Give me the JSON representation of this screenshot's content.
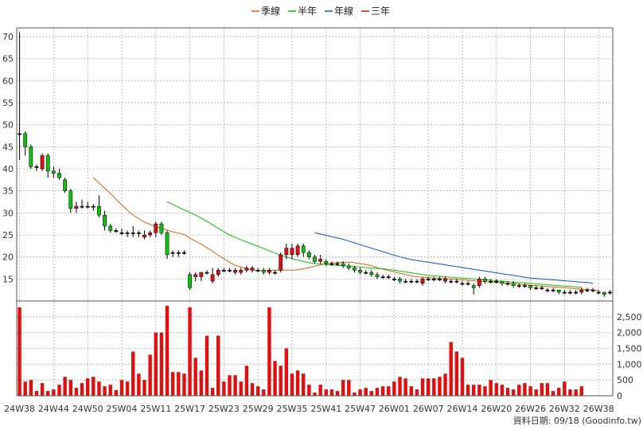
{
  "legend": [
    {
      "label": "季線",
      "color": "#e06010"
    },
    {
      "label": "半年",
      "color": "#10c010"
    },
    {
      "label": "年線",
      "color": "#1050d0"
    },
    {
      "label": "三年",
      "color": "#e01010"
    }
  ],
  "source_text": "資料日期: 09/18  (Goodinfo.tw)",
  "chart_data": {
    "type": "candlestick",
    "price_axis": {
      "ylim": [
        10,
        72
      ],
      "ticks": [
        15,
        20,
        25,
        30,
        35,
        40,
        45,
        50,
        55,
        60,
        65,
        70
      ],
      "side": "left"
    },
    "volume_axis": {
      "ylim": [
        0,
        3000
      ],
      "ticks": [
        0,
        500,
        1000,
        1500,
        2000,
        2500
      ],
      "tick_labels": [
        "0",
        "500",
        "1,000",
        "1,500",
        "2,000",
        "2,500"
      ],
      "side": "right"
    },
    "x_tick_labels": [
      "24W38",
      "24W44",
      "24W50",
      "25W04",
      "25W11",
      "25W17",
      "25W23",
      "25W29",
      "25W35",
      "25W41",
      "25W47",
      "26W01",
      "26W07",
      "26W14",
      "26W20",
      "26W26",
      "26W32",
      "26W38"
    ],
    "grid": true,
    "candle_colors": {
      "up": "#e01010",
      "down": "#10c010",
      "flat": "#000000"
    },
    "volume_color": "#e01010",
    "candles": [
      {
        "o": 48,
        "h": 71,
        "l": 42,
        "c": 48
      },
      {
        "o": 48,
        "h": 48.5,
        "l": 43,
        "c": 45
      },
      {
        "o": 45,
        "h": 45.5,
        "l": 40,
        "c": 40.5
      },
      {
        "o": 40.5,
        "h": 41,
        "l": 39.5,
        "c": 40.5
      },
      {
        "o": 40,
        "h": 43.5,
        "l": 39.5,
        "c": 43
      },
      {
        "o": 43,
        "h": 43.5,
        "l": 38,
        "c": 39.5
      },
      {
        "o": 39.5,
        "h": 40.5,
        "l": 38,
        "c": 39
      },
      {
        "o": 39,
        "h": 40,
        "l": 37.5,
        "c": 38
      },
      {
        "o": 37.5,
        "h": 38,
        "l": 34.5,
        "c": 35
      },
      {
        "o": 35,
        "h": 35.5,
        "l": 30,
        "c": 31
      },
      {
        "o": 31,
        "h": 32.5,
        "l": 30,
        "c": 31.5
      },
      {
        "o": 31.5,
        "h": 33,
        "l": 31,
        "c": 31.5
      },
      {
        "o": 31.5,
        "h": 32.5,
        "l": 31,
        "c": 31.5
      },
      {
        "o": 31.5,
        "h": 32,
        "l": 30.5,
        "c": 31.5
      },
      {
        "o": 31.5,
        "h": 34,
        "l": 29,
        "c": 29.5
      },
      {
        "o": 29.5,
        "h": 30.5,
        "l": 26,
        "c": 27
      },
      {
        "o": 27,
        "h": 27.5,
        "l": 25.5,
        "c": 26
      },
      {
        "o": 26,
        "h": 26.5,
        "l": 25.5,
        "c": 26
      },
      {
        "o": 25.5,
        "h": 26.5,
        "l": 25,
        "c": 25.5
      },
      {
        "o": 25.5,
        "h": 26,
        "l": 24.5,
        "c": 25.5
      },
      {
        "o": 25.5,
        "h": 27,
        "l": 24.5,
        "c": 25.5
      },
      {
        "o": 25.5,
        "h": 26,
        "l": 24.5,
        "c": 25.5
      },
      {
        "o": 24.5,
        "h": 26,
        "l": 24,
        "c": 25
      },
      {
        "o": 25,
        "h": 26,
        "l": 24.5,
        "c": 25.5
      },
      {
        "o": 25.5,
        "h": 28,
        "l": 24.5,
        "c": 27.5
      },
      {
        "o": 27.5,
        "h": 28,
        "l": 25,
        "c": 25.5
      },
      {
        "o": 25.5,
        "h": 26,
        "l": 19.5,
        "c": 20.5
      },
      {
        "o": 21,
        "h": 21.5,
        "l": 20,
        "c": 21
      },
      {
        "o": 21,
        "h": 21.5,
        "l": 20,
        "c": 21
      },
      {
        "o": 21,
        "h": 21.5,
        "l": 20.5,
        "c": 21
      },
      {
        "o": 16,
        "h": 16.5,
        "l": 12.5,
        "c": 13
      },
      {
        "o": 15.5,
        "h": 16.5,
        "l": 14.5,
        "c": 16
      },
      {
        "o": 15.5,
        "h": 16.5,
        "l": 14.5,
        "c": 16.5
      },
      {
        "o": 16.5,
        "h": 17,
        "l": 16,
        "c": 16.5
      },
      {
        "o": 14.5,
        "h": 17.5,
        "l": 14,
        "c": 16
      },
      {
        "o": 16,
        "h": 17.5,
        "l": 15.5,
        "c": 17
      },
      {
        "o": 17,
        "h": 17.5,
        "l": 16.5,
        "c": 17
      },
      {
        "o": 17,
        "h": 17.5,
        "l": 16.5,
        "c": 17
      },
      {
        "o": 16.5,
        "h": 17.5,
        "l": 16,
        "c": 17
      },
      {
        "o": 16.5,
        "h": 17.5,
        "l": 16,
        "c": 17
      },
      {
        "o": 17,
        "h": 18,
        "l": 16.5,
        "c": 17.5
      },
      {
        "o": 17,
        "h": 18,
        "l": 16.5,
        "c": 17.5
      },
      {
        "o": 17,
        "h": 17.5,
        "l": 16.5,
        "c": 17
      },
      {
        "o": 17,
        "h": 17.5,
        "l": 16,
        "c": 16.5
      },
      {
        "o": 16.5,
        "h": 17.5,
        "l": 16,
        "c": 17
      },
      {
        "o": 16.5,
        "h": 17,
        "l": 16,
        "c": 16.5
      },
      {
        "o": 17,
        "h": 21,
        "l": 16.5,
        "c": 20.5
      },
      {
        "o": 20.5,
        "h": 23,
        "l": 19.5,
        "c": 22
      },
      {
        "o": 20.5,
        "h": 23,
        "l": 19.5,
        "c": 22
      },
      {
        "o": 20.5,
        "h": 23,
        "l": 20,
        "c": 22.5
      },
      {
        "o": 22.5,
        "h": 23,
        "l": 20,
        "c": 21
      },
      {
        "o": 21,
        "h": 21.5,
        "l": 19.5,
        "c": 20
      },
      {
        "o": 20,
        "h": 20.5,
        "l": 18.5,
        "c": 19
      },
      {
        "o": 19,
        "h": 20.5,
        "l": 18.5,
        "c": 19.5
      },
      {
        "o": 19,
        "h": 19.5,
        "l": 18,
        "c": 18.5
      },
      {
        "o": 18.5,
        "h": 19,
        "l": 18,
        "c": 18.5
      },
      {
        "o": 18.5,
        "h": 19,
        "l": 18,
        "c": 18.5
      },
      {
        "o": 18.5,
        "h": 19,
        "l": 17.5,
        "c": 18
      },
      {
        "o": 18,
        "h": 18.5,
        "l": 17,
        "c": 17.5
      },
      {
        "o": 17.5,
        "h": 18,
        "l": 16.5,
        "c": 17
      },
      {
        "o": 17,
        "h": 17.5,
        "l": 16,
        "c": 16.5
      },
      {
        "o": 16.5,
        "h": 17,
        "l": 16,
        "c": 16.5
      },
      {
        "o": 16.5,
        "h": 17,
        "l": 15.5,
        "c": 16
      },
      {
        "o": 16,
        "h": 16.5,
        "l": 15,
        "c": 15.5
      },
      {
        "o": 15.5,
        "h": 16,
        "l": 15,
        "c": 15.5
      },
      {
        "o": 15.5,
        "h": 16,
        "l": 15,
        "c": 15.5
      },
      {
        "o": 15,
        "h": 15.5,
        "l": 14.5,
        "c": 15
      },
      {
        "o": 15,
        "h": 15.5,
        "l": 14,
        "c": 14.5
      },
      {
        "o": 14.5,
        "h": 15,
        "l": 14,
        "c": 14.5
      },
      {
        "o": 14.5,
        "h": 15,
        "l": 14,
        "c": 14.5
      },
      {
        "o": 14.5,
        "h": 15,
        "l": 14,
        "c": 14.5
      },
      {
        "o": 14,
        "h": 15.5,
        "l": 13.5,
        "c": 15
      },
      {
        "o": 15,
        "h": 15.5,
        "l": 14.5,
        "c": 15
      },
      {
        "o": 15,
        "h": 15.5,
        "l": 14.5,
        "c": 15
      },
      {
        "o": 15,
        "h": 15.5,
        "l": 14.5,
        "c": 15
      },
      {
        "o": 14.5,
        "h": 15.5,
        "l": 14,
        "c": 15
      },
      {
        "o": 14.5,
        "h": 15,
        "l": 14,
        "c": 14.5
      },
      {
        "o": 14.5,
        "h": 15,
        "l": 14,
        "c": 14.5
      },
      {
        "o": 14,
        "h": 14.5,
        "l": 13.5,
        "c": 14
      },
      {
        "o": 14,
        "h": 14.5,
        "l": 13.5,
        "c": 14
      },
      {
        "o": 13.5,
        "h": 14,
        "l": 11.5,
        "c": 13
      },
      {
        "o": 13.5,
        "h": 15.5,
        "l": 13,
        "c": 15
      },
      {
        "o": 15,
        "h": 15.5,
        "l": 14,
        "c": 14.5
      },
      {
        "o": 14.5,
        "h": 15,
        "l": 14,
        "c": 14.5
      },
      {
        "o": 14.5,
        "h": 15,
        "l": 14,
        "c": 14.5
      },
      {
        "o": 14.5,
        "h": 14.5,
        "l": 13.5,
        "c": 14
      },
      {
        "o": 14,
        "h": 14.5,
        "l": 13.5,
        "c": 14
      },
      {
        "o": 14,
        "h": 14.5,
        "l": 13,
        "c": 13.5
      },
      {
        "o": 13.5,
        "h": 14,
        "l": 13,
        "c": 13.5
      },
      {
        "o": 13.5,
        "h": 14,
        "l": 13,
        "c": 13.5
      },
      {
        "o": 13.5,
        "h": 13.5,
        "l": 12.5,
        "c": 13
      },
      {
        "o": 13,
        "h": 13.5,
        "l": 12.5,
        "c": 13
      },
      {
        "o": 13,
        "h": 13.5,
        "l": 12.5,
        "c": 13
      },
      {
        "o": 12.5,
        "h": 13,
        "l": 12,
        "c": 12.5
      },
      {
        "o": 12.5,
        "h": 13,
        "l": 12,
        "c": 12.5
      },
      {
        "o": 12.5,
        "h": 12.5,
        "l": 11.5,
        "c": 12
      },
      {
        "o": 12,
        "h": 12.5,
        "l": 11.5,
        "c": 12
      },
      {
        "o": 12,
        "h": 12.5,
        "l": 11.5,
        "c": 12
      },
      {
        "o": 12,
        "h": 12.5,
        "l": 11.5,
        "c": 12
      },
      {
        "o": 12,
        "h": 13,
        "l": 11.5,
        "c": 12.5
      },
      {
        "o": 12.5,
        "h": 13,
        "l": 12,
        "c": 12.5
      },
      {
        "o": 12.5,
        "h": 13,
        "l": 12,
        "c": 12.5
      },
      {
        "o": 12,
        "h": 12.5,
        "l": 11.5,
        "c": 12
      },
      {
        "o": 12,
        "h": 12,
        "l": 11,
        "c": 11.5
      },
      {
        "o": 12,
        "h": 12.5,
        "l": 11.5,
        "c": 12
      }
    ],
    "volume": [
      2800,
      450,
      500,
      150,
      400,
      150,
      200,
      350,
      600,
      500,
      250,
      400,
      550,
      600,
      450,
      300,
      350,
      180,
      500,
      450,
      1400,
      700,
      500,
      1300,
      2000,
      2000,
      2850,
      750,
      750,
      700,
      2800,
      1200,
      800,
      1900,
      250,
      1900,
      450,
      650,
      650,
      450,
      950,
      400,
      300,
      200,
      2800,
      1100,
      950,
      1500,
      700,
      800,
      700,
      350,
      100,
      350,
      200,
      200,
      150,
      500,
      500,
      100,
      200,
      250,
      150,
      250,
      300,
      300,
      450,
      600,
      550,
      300,
      200,
      550,
      550,
      550,
      600,
      700,
      1700,
      1400,
      1200,
      350,
      350,
      350,
      300,
      500,
      400,
      350,
      250,
      200,
      350,
      400,
      300,
      200,
      400,
      400,
      150,
      250,
      450,
      200,
      200,
      300
    ],
    "moving_averages": [
      {
        "name": "季線",
        "color": "#e06010",
        "start": 13,
        "values": [
          38,
          36.8,
          35.6,
          34.4,
          33.1,
          31.8,
          30.6,
          29.5,
          28.7,
          27.9,
          27.4,
          26.9,
          26.5,
          26.1,
          25.7,
          25.4,
          25.1,
          24.3,
          23.6,
          22.9,
          22.1,
          21.3,
          20.4,
          19.6,
          18.8,
          18.1,
          17.7,
          17.3,
          17,
          16.9,
          16.9,
          17,
          17,
          17,
          17,
          17,
          17.1,
          17.3,
          17.6,
          17.9,
          18.2,
          18.4,
          18.6,
          18.7,
          18.8,
          18.8,
          18.7,
          18.5,
          18.3,
          18,
          17.6,
          17.2,
          16.9,
          16.6,
          16.3,
          16,
          15.7,
          15.5,
          15.4,
          15.3,
          15.2,
          15.1,
          15.1,
          15,
          14.9,
          14.8,
          14.7,
          14.6,
          14.5,
          14.4,
          14.3,
          14.2,
          14.1,
          14,
          13.9,
          13.8,
          13.7,
          13.6,
          13.5,
          13.4,
          13.3,
          13.2,
          13.1,
          13,
          12.9,
          12.8,
          12.7,
          12.6,
          12.5,
          12.4
        ]
      },
      {
        "name": "半年",
        "color": "#10c010",
        "start": 26,
        "values": [
          32.5,
          31.9,
          31.3,
          30.7,
          30.1,
          29.5,
          28.8,
          28.1,
          27.3,
          26.5,
          25.7,
          25,
          24.4,
          23.9,
          23.4,
          22.9,
          22.4,
          21.9,
          21.4,
          20.9,
          20.4,
          20,
          19.6,
          19.3,
          19,
          18.7,
          18.5,
          18.4,
          18.3,
          18.2,
          18.1,
          18,
          17.9,
          17.8,
          17.7,
          17.6,
          17.5,
          17.4,
          17.3,
          17.2,
          17,
          16.8,
          16.6,
          16.4,
          16.2,
          16,
          15.8,
          15.7,
          15.6,
          15.5,
          15.4,
          15.3,
          15.2,
          15.1,
          15,
          14.9,
          14.8,
          14.7,
          14.6,
          14.5,
          14.4,
          14.3,
          14.2,
          14.1,
          14,
          13.9,
          13.8,
          13.7,
          13.6,
          13.5,
          13.4,
          13.3,
          13.2,
          13.1
        ]
      },
      {
        "name": "年線",
        "color": "#1050d0",
        "start": 52,
        "values": [
          25.5,
          25.2,
          24.9,
          24.6,
          24.3,
          24,
          23.6,
          23.2,
          22.8,
          22.4,
          22,
          21.6,
          21.2,
          20.8,
          20.4,
          20,
          19.7,
          19.4,
          19.2,
          19,
          18.8,
          18.6,
          18.4,
          18.2,
          18,
          17.8,
          17.6,
          17.4,
          17.2,
          17,
          16.8,
          16.6,
          16.4,
          16.2,
          16,
          15.8,
          15.6,
          15.4,
          15.2,
          15.1,
          15,
          14.9,
          14.8,
          14.7,
          14.6,
          14.5,
          14.4,
          14.3,
          14.2,
          14
        ]
      }
    ]
  }
}
